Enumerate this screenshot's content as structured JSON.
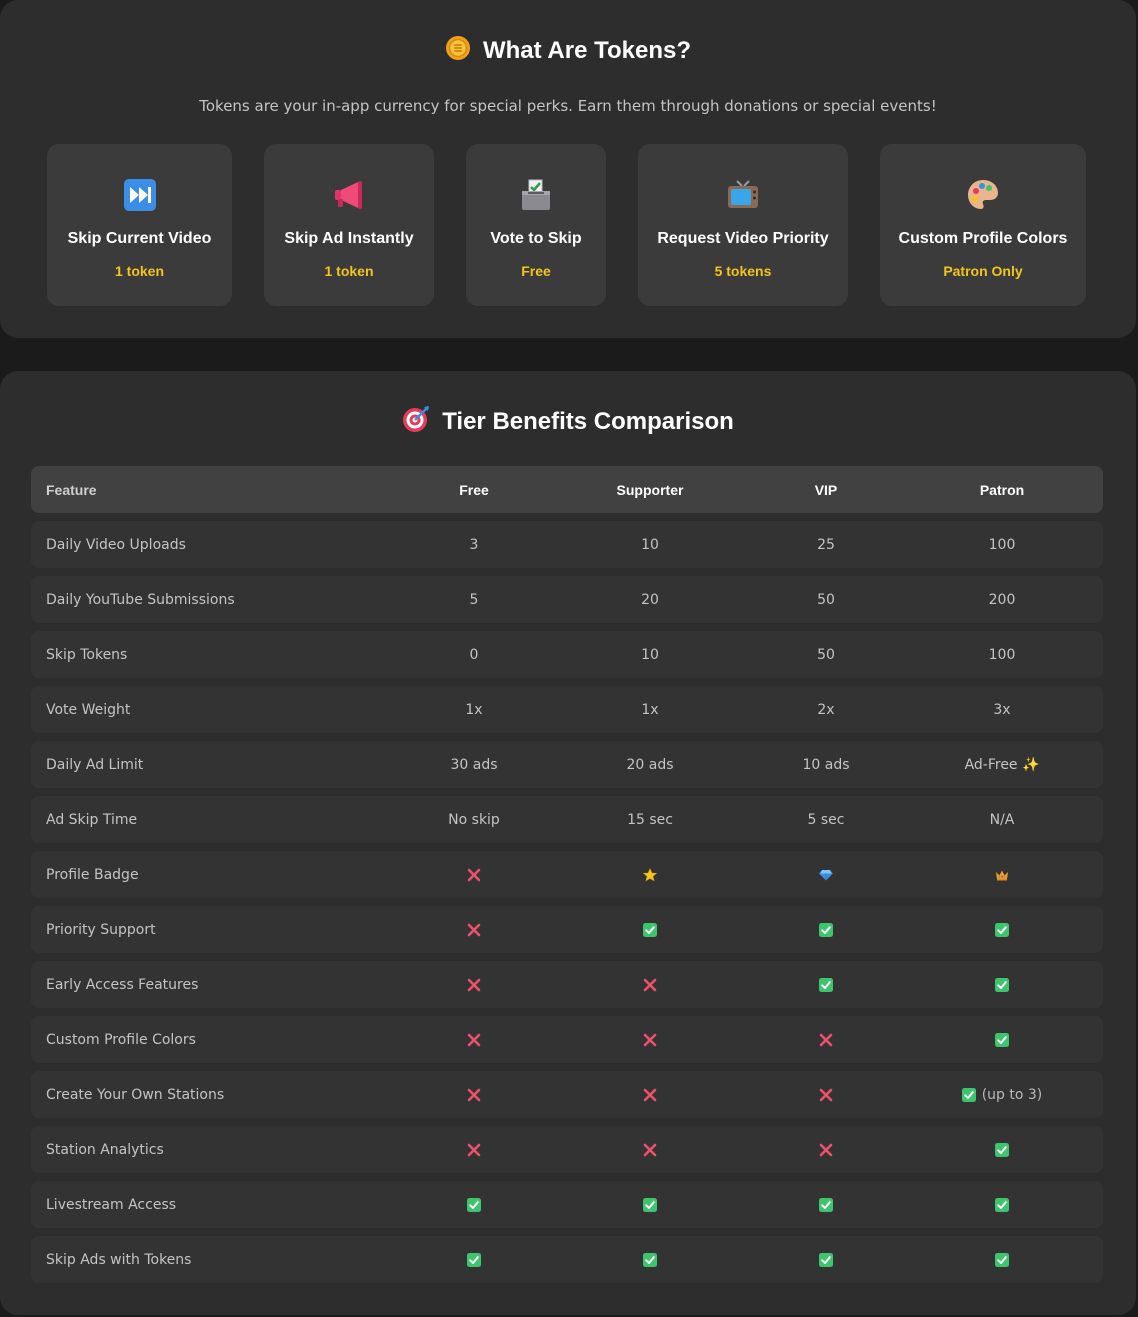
{
  "tokens_section": {
    "title": "What Are Tokens?",
    "title_icon": "coin-icon",
    "intro": "Tokens are your in-app currency for special perks. Earn them through donations or special events!",
    "perks": [
      {
        "icon": "fast-forward-icon",
        "name": "Skip Current Video",
        "cost": "1 token"
      },
      {
        "icon": "megaphone-icon",
        "name": "Skip Ad Instantly",
        "cost": "1 token"
      },
      {
        "icon": "ballot-box-icon",
        "name": "Vote to Skip",
        "cost": "Free"
      },
      {
        "icon": "television-icon",
        "name": "Request Video Priority",
        "cost": "5 tokens"
      },
      {
        "icon": "artist-palette-icon",
        "name": "Custom Profile Colors",
        "cost": "Patron Only"
      }
    ]
  },
  "tiers_section": {
    "title": "Tier Benefits Comparison",
    "title_icon": "bullseye-icon",
    "headers": [
      "Feature",
      "Free",
      "Supporter",
      "VIP",
      "Patron"
    ],
    "rows": [
      {
        "feature": "Daily Video Uploads",
        "values": [
          "3",
          "10",
          "25",
          "100"
        ]
      },
      {
        "feature": "Daily YouTube Submissions",
        "values": [
          "5",
          "20",
          "50",
          "200"
        ]
      },
      {
        "feature": "Skip Tokens",
        "values": [
          "0",
          "10",
          "50",
          "100"
        ]
      },
      {
        "feature": "Vote Weight",
        "values": [
          "1x",
          "1x",
          "2x",
          "3x"
        ]
      },
      {
        "feature": "Daily Ad Limit",
        "values": [
          "30 ads",
          "20 ads",
          "10 ads",
          "Ad-Free ✨"
        ]
      },
      {
        "feature": "Ad Skip Time",
        "values": [
          "No skip",
          "15 sec",
          "5 sec",
          "N/A"
        ]
      },
      {
        "feature": "Profile Badge",
        "values": [
          "cross-mark-icon",
          "star-icon",
          "gem-icon",
          "crown-icon"
        ]
      },
      {
        "feature": "Priority Support",
        "values": [
          "cross-mark-icon",
          "check-mark-icon",
          "check-mark-icon",
          "check-mark-icon"
        ]
      },
      {
        "feature": "Early Access Features",
        "values": [
          "cross-mark-icon",
          "cross-mark-icon",
          "check-mark-icon",
          "check-mark-icon"
        ]
      },
      {
        "feature": "Custom Profile Colors",
        "values": [
          "cross-mark-icon",
          "cross-mark-icon",
          "cross-mark-icon",
          "check-mark-icon"
        ]
      },
      {
        "feature": "Create Your Own Stations",
        "values": [
          "cross-mark-icon",
          "cross-mark-icon",
          "cross-mark-icon",
          "check-mark-icon"
        ],
        "patron_suffix": "(up to 3)"
      },
      {
        "feature": "Station Analytics",
        "values": [
          "cross-mark-icon",
          "cross-mark-icon",
          "cross-mark-icon",
          "check-mark-icon"
        ]
      },
      {
        "feature": "Livestream Access",
        "values": [
          "check-mark-icon",
          "check-mark-icon",
          "check-mark-icon",
          "check-mark-icon"
        ]
      },
      {
        "feature": "Skip Ads with Tokens",
        "values": [
          "check-mark-icon",
          "check-mark-icon",
          "check-mark-icon",
          "check-mark-icon"
        ]
      }
    ]
  },
  "colors": {
    "accent_gold": "#f5c518",
    "check_green": "#3ec46d",
    "cross_red": "#f0506e"
  }
}
